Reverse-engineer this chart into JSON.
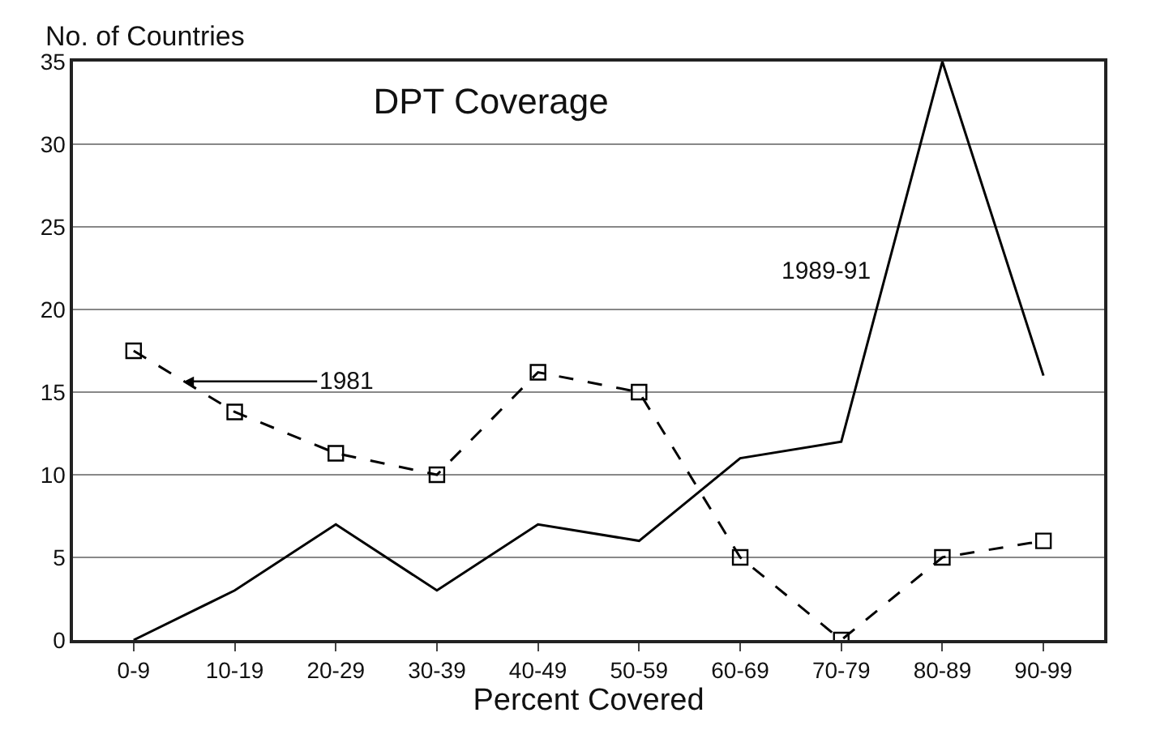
{
  "chart_data": {
    "type": "line",
    "title": "DPT Coverage",
    "xlabel": "Percent Covered",
    "ylabel": "No. of Countries",
    "categories": [
      "0-9",
      "10-19",
      "20-29",
      "30-39",
      "40-49",
      "50-59",
      "60-69",
      "70-79",
      "80-89",
      "90-99"
    ],
    "series": [
      {
        "name": "1981",
        "color": "#000000",
        "marker": "square",
        "line_style": "dashed",
        "values": [
          17.5,
          13.8,
          11.3,
          10,
          16.2,
          15,
          5,
          0,
          5,
          6
        ]
      },
      {
        "name": "1989-91",
        "color": "#000000",
        "marker": "none",
        "line_style": "solid",
        "values": [
          0,
          3,
          7,
          3,
          7,
          6,
          11,
          12,
          35,
          16
        ]
      }
    ],
    "ylim": [
      0,
      35
    ],
    "yticks": [
      0,
      5,
      10,
      15,
      20,
      25,
      30,
      35
    ],
    "grid": "y",
    "legend": false
  }
}
